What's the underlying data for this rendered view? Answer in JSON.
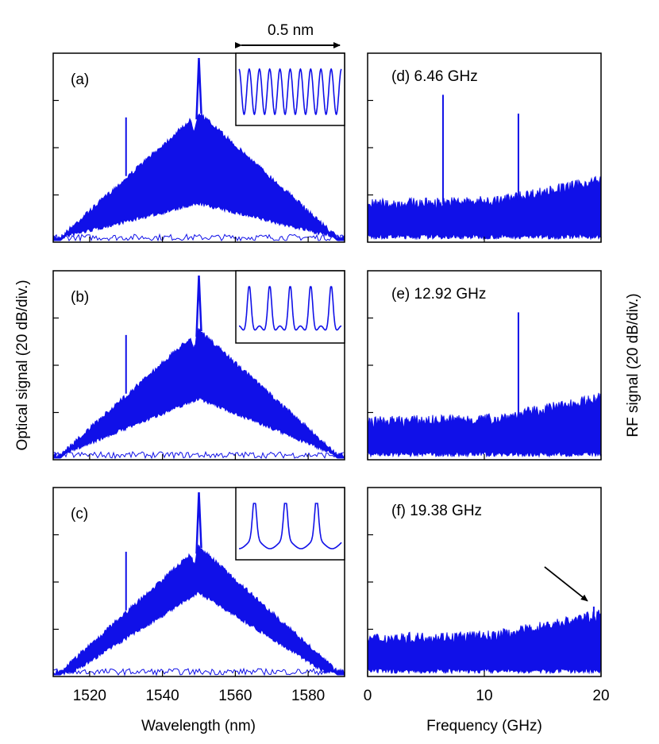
{
  "chart_data": {
    "type": "line",
    "layout": "3x2 grid of panels",
    "axis_labels": {
      "left_y": "Optical signal (20 dB/div.)",
      "right_y": "RF signal (20 dB/div.)",
      "left_x": "Wavelength (nm)",
      "right_x": "Frequency (GHz)"
    },
    "scale_bar": {
      "label": "0.5 nm"
    },
    "optical_xaxis": {
      "range": [
        1510,
        1590
      ],
      "ticks": [
        1520,
        1540,
        1560,
        1580
      ],
      "tick_labels": [
        "1520",
        "1540",
        "1560",
        "1580"
      ]
    },
    "rf_xaxis": {
      "range": [
        0,
        20
      ],
      "ticks": [
        0,
        10,
        20
      ],
      "tick_labels": [
        "0",
        "10",
        "20"
      ]
    },
    "optical_panels": [
      {
        "label": "(a)",
        "center_nm": 1550,
        "half_width_nm": 38,
        "ase_peak_nm": 1530,
        "inset_periods": 10,
        "inset_shape": "sine"
      },
      {
        "label": "(b)",
        "center_nm": 1550,
        "half_width_nm": 38,
        "ase_peak_nm": 1530,
        "inset_periods": 5,
        "inset_shape": "peaked"
      },
      {
        "label": "(c)",
        "center_nm": 1550,
        "half_width_nm": 38,
        "ase_peak_nm": 1530,
        "inset_periods": 3.3,
        "inset_shape": "sharp"
      }
    ],
    "rf_panels": [
      {
        "label": "(d) 6.46 GHz",
        "rep_rate_ghz": 6.46,
        "harmonics_ghz": [
          6.46,
          12.92
        ],
        "arrow": false
      },
      {
        "label": "(e) 12.92 GHz",
        "rep_rate_ghz": 12.92,
        "harmonics_ghz": [
          12.92
        ],
        "arrow": false
      },
      {
        "label": "(f) 19.38 GHz",
        "rep_rate_ghz": 19.38,
        "harmonics_ghz": [
          19.38
        ],
        "arrow": true
      }
    ],
    "colors": {
      "trace": "#1010e8",
      "axes": "#000000"
    }
  }
}
